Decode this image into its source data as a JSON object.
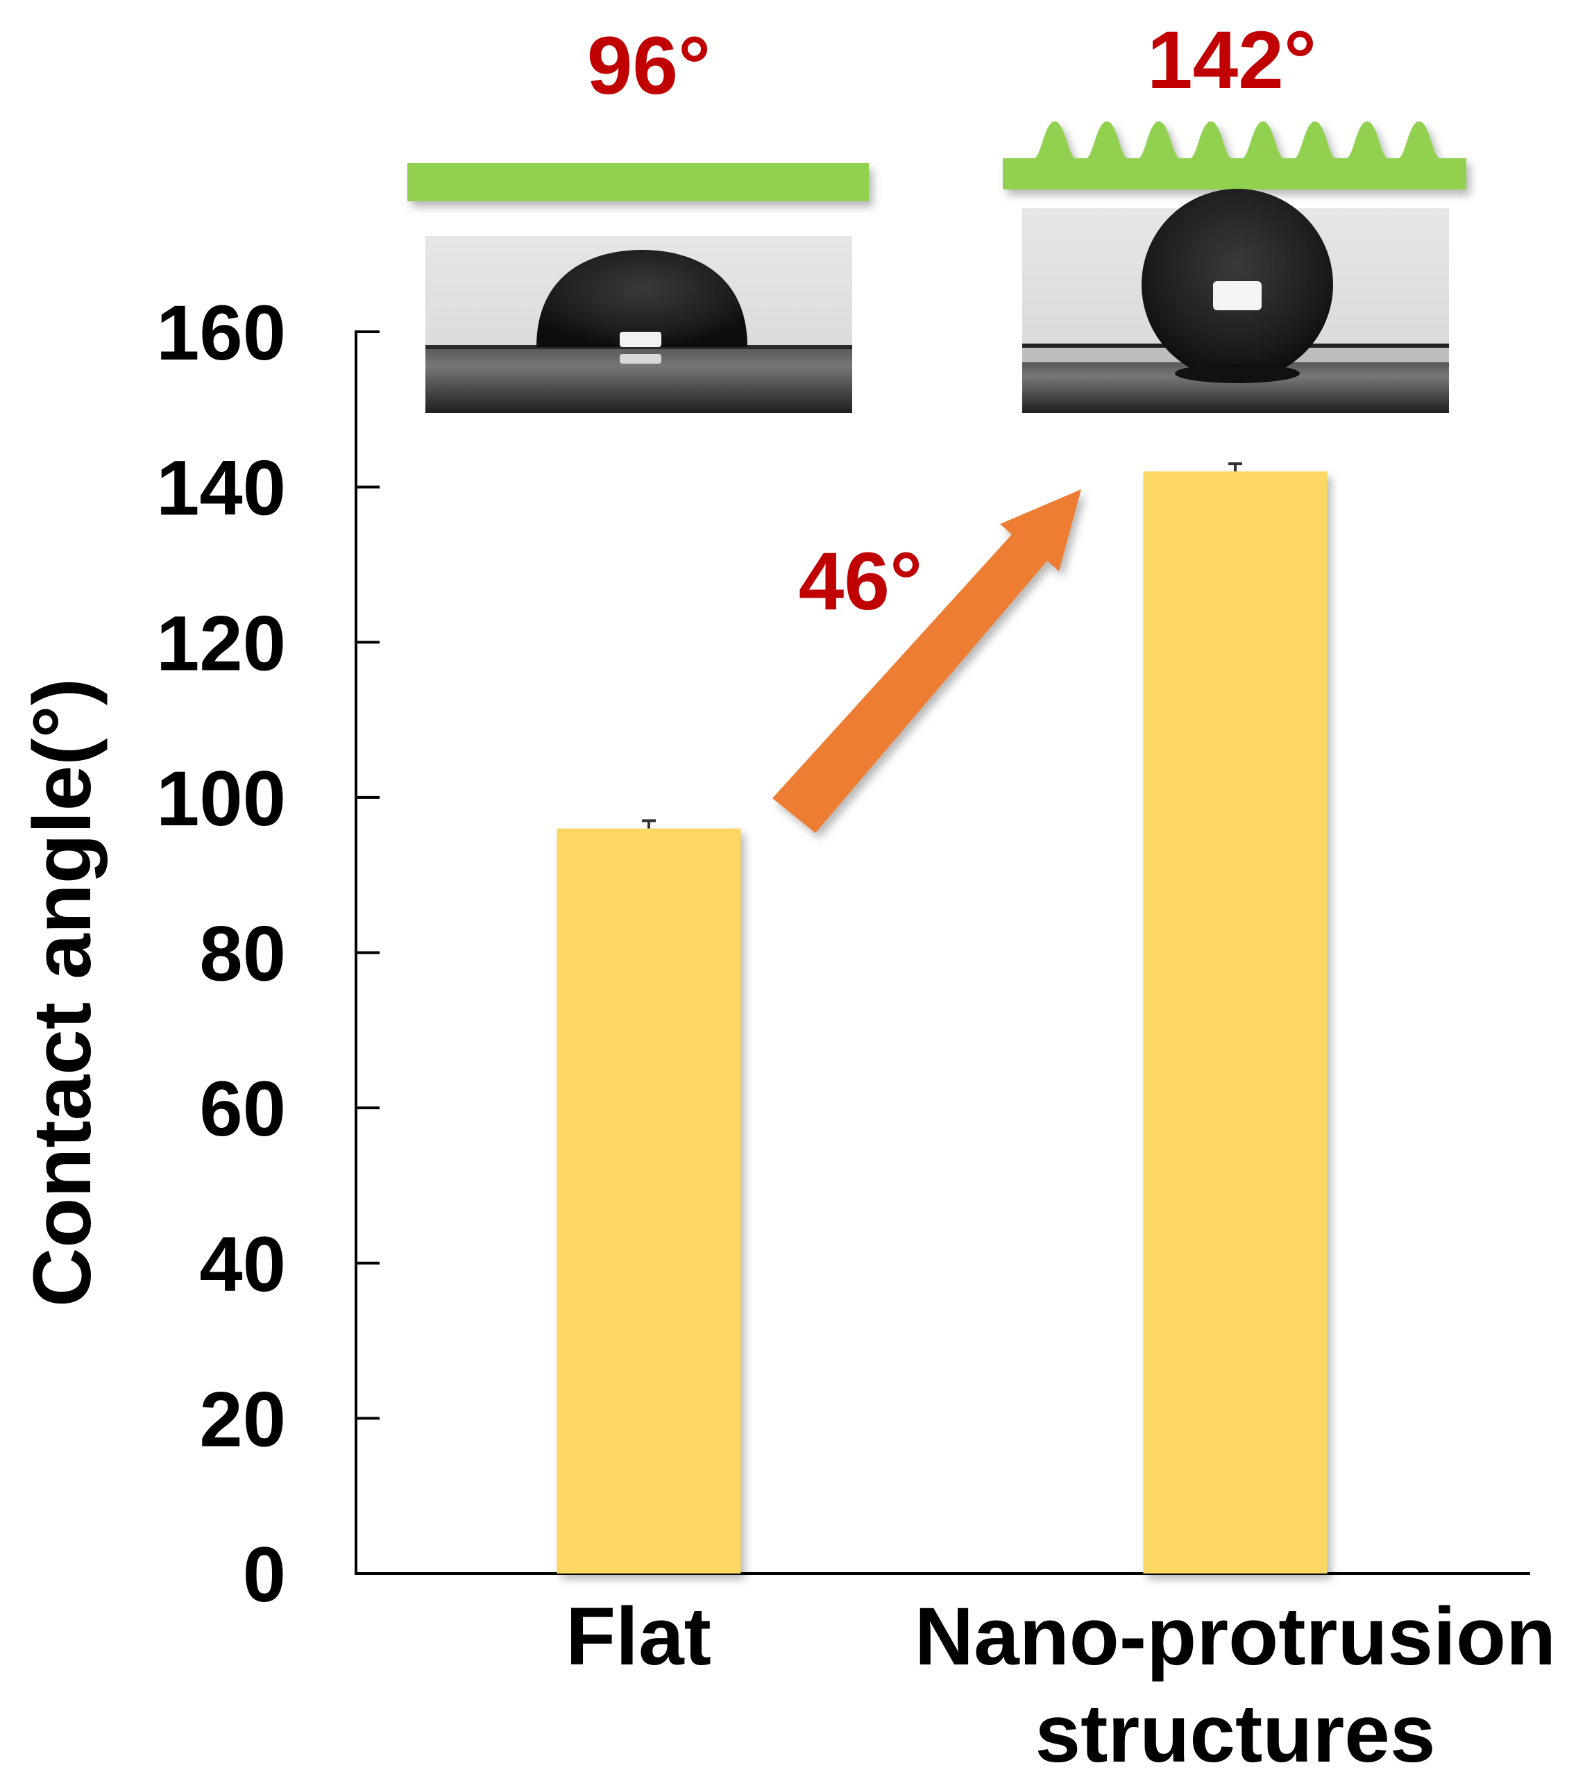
{
  "chart_data": {
    "type": "bar",
    "categories": [
      "Flat",
      "Nano-protrusion structures"
    ],
    "category_lines": [
      [
        "Flat"
      ],
      [
        "Nano-protrusion",
        "structures"
      ]
    ],
    "values": [
      96,
      142
    ],
    "errors": [
      1,
      1
    ],
    "title": "",
    "xlabel": "",
    "ylabel": "Contact angle(°)",
    "ylim": [
      0,
      160
    ],
    "yticks": [
      0,
      20,
      40,
      60,
      80,
      100,
      120,
      140,
      160
    ],
    "value_labels": [
      "96°",
      "142°"
    ],
    "annotations": [
      {
        "text": "46°",
        "kind": "arrow",
        "from": "Flat",
        "to": "Nano-protrusion structures"
      }
    ],
    "surface_illustrations": [
      "flat-surface",
      "nano-protrusion-surface"
    ],
    "droplet_images": [
      "droplet-photo-flat",
      "droplet-photo-nano-protrusion"
    ],
    "grid": false,
    "legend": "none"
  },
  "colors": {
    "bar": "#fcd765",
    "value_text": "#c00000",
    "arrow": "#ed7d31",
    "surface": "#92d050",
    "axis": "#000000"
  }
}
